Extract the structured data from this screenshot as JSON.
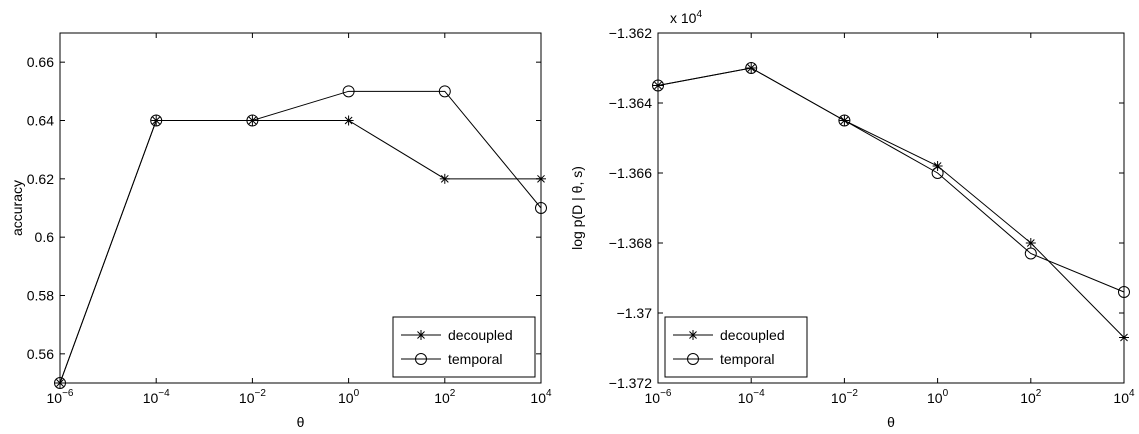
{
  "chart_data": [
    {
      "type": "line",
      "xlabel": "θ",
      "ylabel": "accuracy",
      "xscale": "log",
      "x": [
        1e-06,
        0.0001,
        0.01,
        1,
        100,
        10000
      ],
      "x_tick_mantissa": [
        "10",
        "10",
        "10",
        "10",
        "10",
        "10"
      ],
      "x_tick_exp": [
        "−6",
        "−4",
        "−2",
        "0",
        "2",
        "4"
      ],
      "ylim": [
        0.55,
        0.67
      ],
      "y_ticks": [
        0.56,
        0.58,
        0.6,
        0.62,
        0.64,
        0.66
      ],
      "y_tick_labels": [
        "0.56",
        "0.58",
        "0.6",
        "0.62",
        "0.64",
        "0.66"
      ],
      "series": [
        {
          "name": "decoupled",
          "marker": "asterisk",
          "values": [
            0.55,
            0.64,
            0.64,
            0.64,
            0.62,
            0.62
          ]
        },
        {
          "name": "temporal",
          "marker": "circle",
          "values": [
            0.55,
            0.64,
            0.64,
            0.65,
            0.65,
            0.61
          ]
        }
      ],
      "legend_position": "bottom-right",
      "grid": false
    },
    {
      "type": "line",
      "xlabel": "θ",
      "ylabel": "log p(D | θ, s)",
      "xscale": "log",
      "x": [
        1e-06,
        0.0001,
        0.01,
        1,
        100,
        10000
      ],
      "x_tick_mantissa": [
        "10",
        "10",
        "10",
        "10",
        "10",
        "10"
      ],
      "x_tick_exp": [
        "−6",
        "−4",
        "−2",
        "0",
        "2",
        "4"
      ],
      "ylim": [
        -13720,
        -13620
      ],
      "y_ticks": [
        -13720,
        -13700,
        -13680,
        -13660,
        -13640,
        -13620
      ],
      "y_tick_labels": [
        "−1.372",
        "−1.37",
        "−1.368",
        "−1.366",
        "−1.364",
        "−1.362"
      ],
      "y_multiplier_base": "x 10",
      "y_multiplier_exp": "4",
      "series": [
        {
          "name": "decoupled",
          "marker": "asterisk",
          "values": [
            -13635,
            -13630,
            -13645,
            -13658,
            -13680,
            -13707
          ]
        },
        {
          "name": "temporal",
          "marker": "circle",
          "values": [
            -13635,
            -13630,
            -13645,
            -13660,
            -13683,
            -13694
          ]
        }
      ],
      "legend_position": "bottom-left",
      "grid": false
    }
  ]
}
